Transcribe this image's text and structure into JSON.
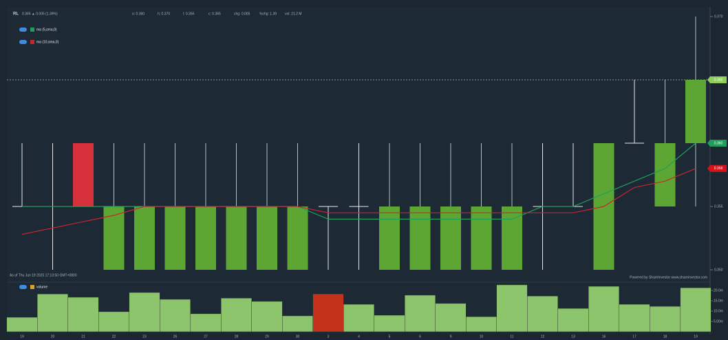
{
  "chart_data": {
    "type": "candlestick",
    "symbol": "RL",
    "quote": "0.365 ▲ 0.005 (1.39%)",
    "stats": [
      "o: 0.360",
      "h: 0.370",
      "l: 0.355",
      "c: 0.365",
      "chg: 0.005",
      "%chg: 1.39",
      "vol: 21.2 M"
    ],
    "categories": [
      "19",
      "20",
      "21",
      "22",
      "23",
      "26",
      "27",
      "28",
      "29",
      "30",
      "3",
      "4",
      "5",
      "6",
      "9",
      "10",
      "11",
      "12",
      "13",
      "16",
      "17",
      "18",
      "19"
    ],
    "open": [
      0.355,
      0.355,
      0.36,
      0.35,
      0.35,
      0.35,
      0.35,
      0.35,
      0.35,
      0.35,
      0.355,
      0.355,
      0.35,
      0.35,
      0.35,
      0.35,
      0.35,
      0.355,
      0.355,
      0.35,
      0.36,
      0.355,
      0.36
    ],
    "high": [
      0.36,
      0.36,
      0.36,
      0.36,
      0.36,
      0.36,
      0.36,
      0.36,
      0.36,
      0.36,
      0.355,
      0.36,
      0.36,
      0.36,
      0.36,
      0.36,
      0.36,
      0.36,
      0.36,
      0.36,
      0.365,
      0.365,
      0.37
    ],
    "low": [
      0.355,
      0.35,
      0.355,
      0.35,
      0.35,
      0.35,
      0.35,
      0.35,
      0.35,
      0.35,
      0.35,
      0.35,
      0.35,
      0.35,
      0.35,
      0.35,
      0.35,
      0.35,
      0.355,
      0.35,
      0.36,
      0.355,
      0.355
    ],
    "close": [
      0.355,
      0.355,
      0.355,
      0.355,
      0.355,
      0.355,
      0.355,
      0.355,
      0.355,
      0.355,
      0.355,
      0.355,
      0.355,
      0.355,
      0.355,
      0.355,
      0.355,
      0.355,
      0.355,
      0.36,
      0.36,
      0.36,
      0.365
    ],
    "up_color": "#5ea634",
    "down_color": "#d6313a",
    "flat_color": "#e8e8e8",
    "ylim": [
      0.35,
      0.37
    ],
    "yticks": [
      {
        "value": 0.37,
        "label": "0.370"
      },
      {
        "value": 0.365,
        "label": "0.365"
      },
      {
        "value": 0.36,
        "label": "0.360"
      },
      {
        "value": 0.355,
        "label": "0.355"
      },
      {
        "value": 0.35,
        "label": "0.350"
      }
    ],
    "series": [
      {
        "name": "ma (5,sma,0)",
        "color": "#1fa05a",
        "values": [
          0.355,
          0.355,
          0.355,
          0.355,
          0.355,
          0.355,
          0.355,
          0.355,
          0.355,
          0.355,
          0.354,
          0.354,
          0.354,
          0.354,
          0.354,
          0.354,
          0.354,
          0.355,
          0.355,
          0.356,
          0.357,
          0.358,
          0.36
        ]
      },
      {
        "name": "ma (10,sma,0)",
        "color": "#c8262e",
        "values": [
          0.3528,
          0.3533,
          0.3538,
          0.3543,
          0.355,
          0.355,
          0.355,
          0.355,
          0.355,
          0.355,
          0.3545,
          0.3545,
          0.3545,
          0.3545,
          0.3545,
          0.3545,
          0.3545,
          0.3545,
          0.3545,
          0.355,
          0.3565,
          0.357,
          0.358
        ]
      }
    ],
    "markers": [
      {
        "value": 0.365,
        "label": "0.365",
        "color": "#8fcf5a"
      },
      {
        "value": 0.36,
        "label": "0.360",
        "color": "#1fa05a"
      },
      {
        "value": 0.358,
        "label": "0.358",
        "color": "#d6131a"
      }
    ],
    "volume": {
      "name": "volume",
      "values": [
        7,
        18.3,
        16.7,
        9.7,
        19,
        15.7,
        8.7,
        16.3,
        14.7,
        7.7,
        18.3,
        13.3,
        8,
        17.7,
        13.7,
        7.3,
        22.7,
        17.3,
        11.3,
        22,
        13.3,
        12.3,
        21.3
      ],
      "colors": [
        "#8dc56c",
        "#8dc56c",
        "#8dc56c",
        "#8dc56c",
        "#8dc56c",
        "#8dc56c",
        "#8dc56c",
        "#8dc56c",
        "#8dc56c",
        "#8dc56c",
        "#c4321c",
        "#8dc56c",
        "#8dc56c",
        "#8dc56c",
        "#8dc56c",
        "#8dc56c",
        "#8dc56c",
        "#8dc56c",
        "#8dc56c",
        "#8dc56c",
        "#8dc56c",
        "#8dc56c",
        "#8dc56c"
      ],
      "ylim": [
        0,
        25
      ],
      "yticks": [
        {
          "value": 20,
          "label": "20.0m"
        },
        {
          "value": 15,
          "label": "15.0m"
        },
        {
          "value": 10,
          "label": "10.0m"
        },
        {
          "value": 5,
          "label": "5.00m"
        }
      ]
    },
    "as_of": "As of Thu Jun 19 2025 17:13:50 GMT+0800",
    "credit": "Powered by ShareInvestor www.shareinvestor.com"
  }
}
